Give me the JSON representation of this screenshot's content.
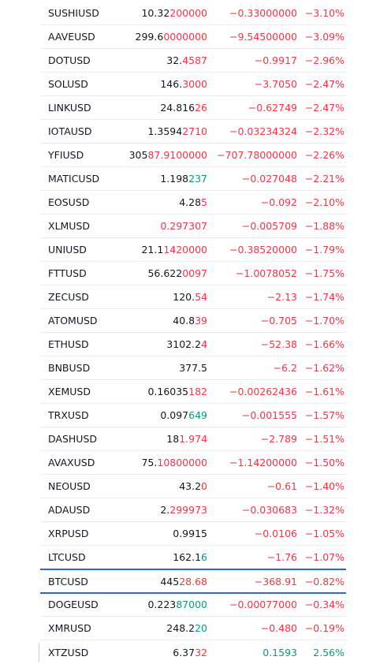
{
  "colors": {
    "negative": "#f23645",
    "positive": "#089981",
    "text": "#131722",
    "selection": "#2962ff"
  },
  "rows": [
    {
      "symbol": "SUSHIUSD",
      "last_base": "10.32",
      "last_tail": "200000",
      "tail_dir": "down",
      "change": "−0.33000000",
      "change_pct": "−3.10%",
      "dir": "down"
    },
    {
      "symbol": "AAVEUSD",
      "last_base": "299.6",
      "last_tail": "0000000",
      "tail_dir": "down",
      "change": "−9.54500000",
      "change_pct": "−3.09%",
      "dir": "down"
    },
    {
      "symbol": "DOTUSD",
      "last_base": "32.",
      "last_tail": "4587",
      "tail_dir": "down",
      "change": "−0.9917",
      "change_pct": "−2.96%",
      "dir": "down"
    },
    {
      "symbol": "SOLUSD",
      "last_base": "146.",
      "last_tail": "3000",
      "tail_dir": "down",
      "change": "−3.7050",
      "change_pct": "−2.47%",
      "dir": "down"
    },
    {
      "symbol": "LINKUSD",
      "last_base": "24.816",
      "last_tail": "26",
      "tail_dir": "down",
      "change": "−0.62749",
      "change_pct": "−2.47%",
      "dir": "down"
    },
    {
      "symbol": "IOTAUSD",
      "last_base": "1.3594",
      "last_tail": "2710",
      "tail_dir": "down",
      "change": "−0.03234324",
      "change_pct": "−2.32%",
      "dir": "down"
    },
    {
      "symbol": "YFIUSD",
      "last_base": "305",
      "last_tail": "87.9100000",
      "tail_dir": "down",
      "change": "−707.78000000",
      "change_pct": "−2.26%",
      "dir": "down"
    },
    {
      "symbol": "MATICUSD",
      "last_base": "1.198",
      "last_tail": "237",
      "tail_dir": "up",
      "change": "−0.027048",
      "change_pct": "−2.21%",
      "dir": "down"
    },
    {
      "symbol": "EOSUSD",
      "last_base": "4.28",
      "last_tail": "5",
      "tail_dir": "down",
      "change": "−0.092",
      "change_pct": "−2.10%",
      "dir": "down"
    },
    {
      "symbol": "XLMUSD",
      "last_base": "",
      "last_tail": "0.297307",
      "tail_dir": "down",
      "change": "−0.005709",
      "change_pct": "−1.88%",
      "dir": "down"
    },
    {
      "symbol": "UNIUSD",
      "last_base": "21.1",
      "last_tail": "1420000",
      "tail_dir": "down",
      "change": "−0.38520000",
      "change_pct": "−1.79%",
      "dir": "down"
    },
    {
      "symbol": "FTTUSD",
      "last_base": "56.622",
      "last_tail": "0097",
      "tail_dir": "down",
      "change": "−1.0078052",
      "change_pct": "−1.75%",
      "dir": "down"
    },
    {
      "symbol": "ZECUSD",
      "last_base": "120.",
      "last_tail": "54",
      "tail_dir": "down",
      "change": "−2.13",
      "change_pct": "−1.74%",
      "dir": "down"
    },
    {
      "symbol": "ATOMUSD",
      "last_base": "40.8",
      "last_tail": "39",
      "tail_dir": "down",
      "change": "−0.705",
      "change_pct": "−1.70%",
      "dir": "down"
    },
    {
      "symbol": "ETHUSD",
      "last_base": "3102.2",
      "last_tail": "4",
      "tail_dir": "down",
      "change": "−52.38",
      "change_pct": "−1.66%",
      "dir": "down"
    },
    {
      "symbol": "BNBUSD",
      "last_base": "377.5",
      "last_tail": "",
      "tail_dir": "down",
      "change": "−6.2",
      "change_pct": "−1.62%",
      "dir": "down"
    },
    {
      "symbol": "XEMUSD",
      "last_base": "0.16035",
      "last_tail": "182",
      "tail_dir": "down",
      "change": "−0.00262436",
      "change_pct": "−1.61%",
      "dir": "down"
    },
    {
      "symbol": "TRXUSD",
      "last_base": "0.097",
      "last_tail": "649",
      "tail_dir": "up",
      "change": "−0.001555",
      "change_pct": "−1.57%",
      "dir": "down"
    },
    {
      "symbol": "DASHUSD",
      "last_base": "18",
      "last_tail": "1.974",
      "tail_dir": "down",
      "change": "−2.789",
      "change_pct": "−1.51%",
      "dir": "down"
    },
    {
      "symbol": "AVAXUSD",
      "last_base": "75.",
      "last_tail": "10800000",
      "tail_dir": "down",
      "change": "−1.14200000",
      "change_pct": "−1.50%",
      "dir": "down"
    },
    {
      "symbol": "NEOUSD",
      "last_base": "43.2",
      "last_tail": "0",
      "tail_dir": "down",
      "change": "−0.61",
      "change_pct": "−1.40%",
      "dir": "down"
    },
    {
      "symbol": "ADAUSD",
      "last_base": "2.",
      "last_tail": "299973",
      "tail_dir": "down",
      "change": "−0.030683",
      "change_pct": "−1.32%",
      "dir": "down"
    },
    {
      "symbol": "XRPUSD",
      "last_base": "0.9915",
      "last_tail": "",
      "tail_dir": "down",
      "change": "−0.0106",
      "change_pct": "−1.05%",
      "dir": "down"
    },
    {
      "symbol": "LTCUSD",
      "last_base": "162.1",
      "last_tail": "6",
      "tail_dir": "up",
      "change": "−1.76",
      "change_pct": "−1.07%",
      "dir": "down"
    },
    {
      "symbol": "BTCUSD",
      "last_base": "445",
      "last_tail": "28.68",
      "tail_dir": "down",
      "change": "−368.91",
      "change_pct": "−0.82%",
      "dir": "down",
      "selected": true
    },
    {
      "symbol": "DOGEUSD",
      "last_base": "0.223",
      "last_tail": "87000",
      "tail_dir": "up",
      "change": "−0.00077000",
      "change_pct": "−0.34%",
      "dir": "down"
    },
    {
      "symbol": "XMRUSD",
      "last_base": "248.2",
      "last_tail": "20",
      "tail_dir": "up",
      "change": "−0.480",
      "change_pct": "−0.19%",
      "dir": "down"
    },
    {
      "symbol": "XTZUSD",
      "last_base": "6.37",
      "last_tail": "32",
      "tail_dir": "down",
      "change": "0.1593",
      "change_pct": "2.56%",
      "dir": "up"
    }
  ]
}
